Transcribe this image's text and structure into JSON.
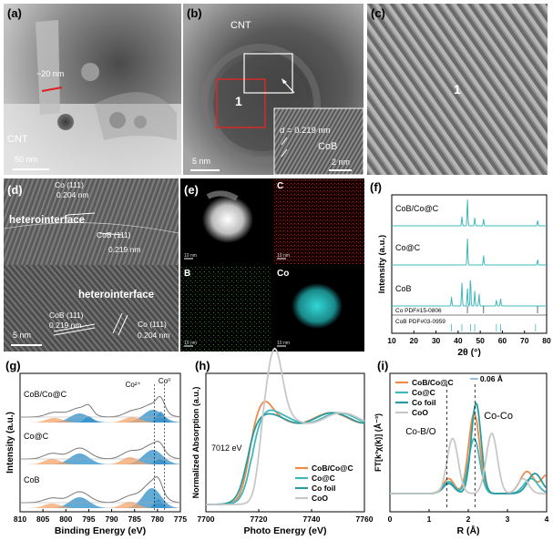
{
  "panels": {
    "a": {
      "label": "(a)",
      "width_annotation": "~20 nm",
      "cnt_label": "CNT",
      "scale_bar": "50 nm"
    },
    "b": {
      "label": "(b)",
      "cnt_label": "CNT",
      "region_label": "1",
      "scale_bar": "5 nm",
      "inset": {
        "d_spacing": "d = 0.219 nm",
        "phase": "CoB",
        "scale_bar": "2 nm"
      }
    },
    "c": {
      "label": "(c)",
      "region_label": "1"
    },
    "d": {
      "label": "(d)",
      "scale_bar": "5 nm",
      "annotations": {
        "co111_top": "Co (111)",
        "co111_top_d": "0.204 nm",
        "hetero_top": "heterointerface",
        "cob111_top": "CoB (111)",
        "cob111_top_d": "0.219 nm",
        "hetero_bottom": "heterointerface",
        "cob111_bottom": "CoB (111)",
        "cob111_bottom_d": "0.219 nm",
        "co111_bottom": "Co (111)",
        "co111_bottom_d": "0.204 nm"
      }
    },
    "e": {
      "label": "(e)",
      "maps": [
        "",
        "C",
        "B",
        "Co"
      ],
      "scale_text": "10 nm"
    },
    "f": {
      "label": "(f)"
    },
    "g": {
      "label": "(g)"
    },
    "h": {
      "label": "(h)"
    },
    "i": {
      "label": "(i)"
    }
  },
  "colors": {
    "teal": "#3fb8bb",
    "orange": "#f08a4b",
    "darkteal": "#2a9b9e",
    "gray": "#c8c8c8",
    "blue_fill": "#2f8fc9",
    "orange_fill": "#f4a46a"
  },
  "chart_data": [
    {
      "type": "line",
      "panel": "f",
      "title": "",
      "xlabel": "2θ (°)",
      "ylabel": "Intensity (a.u.)",
      "xlim": [
        10,
        80
      ],
      "xticks": [
        "10",
        "20",
        "30",
        "40",
        "50",
        "60",
        "70",
        "80"
      ],
      "series": [
        {
          "name": "CoB/Co@C",
          "peaks": [
            [
              44.2,
              1.0
            ],
            [
              41.7,
              0.35
            ],
            [
              47.5,
              0.3
            ],
            [
              51.5,
              0.25
            ],
            [
              75.9,
              0.2
            ]
          ]
        },
        {
          "name": "Co@C",
          "peaks": [
            [
              44.2,
              1.0
            ],
            [
              51.5,
              0.35
            ],
            [
              75.9,
              0.2
            ]
          ]
        },
        {
          "name": "CoB",
          "peaks": [
            [
              37.0,
              0.3
            ],
            [
              41.7,
              0.8
            ],
            [
              44.2,
              0.6
            ],
            [
              45.6,
              1.0
            ],
            [
              47.5,
              0.5
            ],
            [
              49.5,
              0.4
            ],
            [
              57.3,
              0.2
            ],
            [
              59.2,
              0.25
            ]
          ]
        }
      ],
      "references": [
        "Co PDF#15-0806",
        "CoB PDF#03-0959"
      ]
    },
    {
      "type": "line",
      "panel": "g",
      "xlabel": "Binding Energy (eV)",
      "ylabel": "Intensity (a.u.)",
      "xlim": [
        810,
        775
      ],
      "xticks": [
        "810",
        "805",
        "800",
        "795",
        "790",
        "785",
        "780",
        "775"
      ],
      "series_labels": [
        "CoB/Co@C",
        "Co@C",
        "CoB"
      ],
      "annotations": [
        "Co²⁺",
        "Co⁰"
      ]
    },
    {
      "type": "line",
      "panel": "h",
      "xlabel": "Photo Energy (eV)",
      "ylabel": "Normalized Absorption (a.u.)",
      "xlim": [
        7700,
        7760
      ],
      "xticks": [
        "7700",
        "7720",
        "7740",
        "7760"
      ],
      "annotation": "7012 eV",
      "series": [
        {
          "name": "CoB/Co@C",
          "color": "#f08a4b"
        },
        {
          "name": "Co@C",
          "color": "#3fb8bb"
        },
        {
          "name": "Co foil",
          "color": "#2a9b9e"
        },
        {
          "name": "CoO",
          "color": "#c8c8c8"
        }
      ]
    },
    {
      "type": "line",
      "panel": "i",
      "xlabel": "R (Å)",
      "ylabel": "FT[k³χ(k)] (Å⁻³)",
      "xlim": [
        0,
        4
      ],
      "xticks": [
        "0",
        "1",
        "2",
        "3",
        "4"
      ],
      "annotations": [
        "0.06 Å",
        "Co-Co",
        "Co-B/O"
      ],
      "series": [
        {
          "name": "CoB/Co@C",
          "color": "#f08a4b"
        },
        {
          "name": "Co@C",
          "color": "#3fb8bb"
        },
        {
          "name": "Co foil",
          "color": "#2a9b9e"
        },
        {
          "name": "CoO",
          "color": "#c8c8c8"
        }
      ]
    }
  ]
}
